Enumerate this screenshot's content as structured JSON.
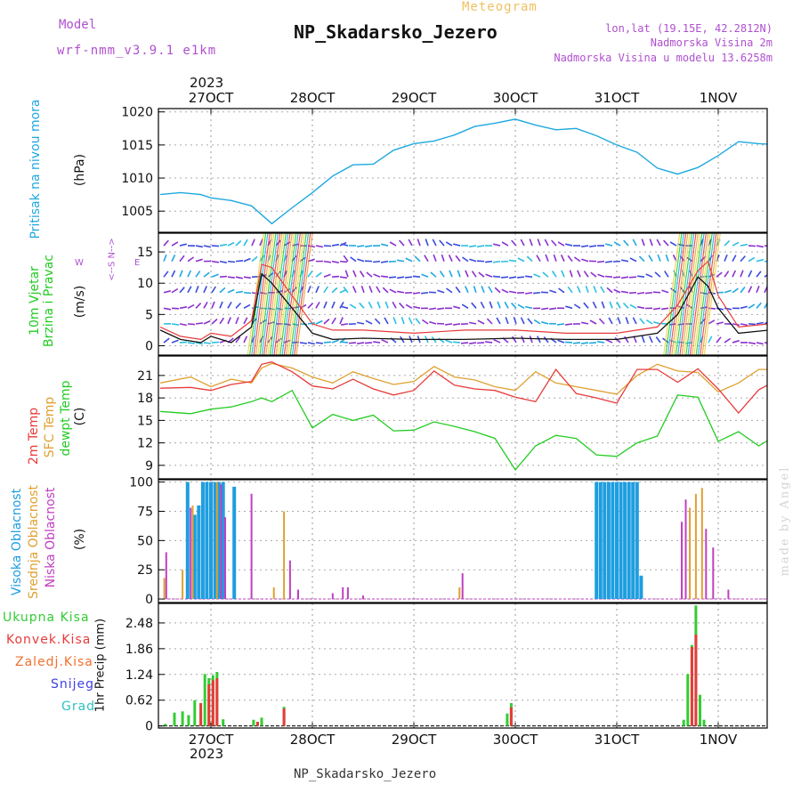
{
  "header": {
    "model_label": "Model",
    "model_value": "wrf-nmm_v3.9.1 e1km",
    "product": "Meteogram",
    "station": "NP_Skadarsko_Jezero",
    "lonlat": "lon,lat (19.15E, 42.2812N)",
    "elevation": "Nadmorska Visina 2m",
    "model_elevation": "Nadmorska Visina u modelu 13.6258m",
    "year_top": "2023",
    "year_bottom": "2023",
    "footer_station": "NP_Skadarsko_Jezero",
    "watermark": "made by Angel"
  },
  "colors": {
    "pressure": "#1ea8e0",
    "temp2m": "#e83a3a",
    "sfc": "#e0a030",
    "dew": "#22cc22",
    "high": "#1e9ee0",
    "mid": "#e0a030",
    "low": "#c040c0",
    "total": "#33cc33",
    "conv": "#e83a3a",
    "frozen": "#f07030",
    "snow": "#4040e0",
    "hail": "#30c0c0",
    "purple_text": "#b050d0"
  },
  "chart_data": [
    {
      "type": "line",
      "panel": "pressure",
      "ylabel_name": "Pritisak na nivou mora",
      "ylabel_unit": "(hPa)",
      "days": [
        "27OCT",
        "28OCT",
        "29OCT",
        "30OCT",
        "31OCT",
        "1NOV"
      ],
      "yticks": [
        1005,
        1010,
        1015,
        1020
      ],
      "ylim": [
        1001.8,
        1020.5
      ],
      "x": [
        -0.5,
        -0.3,
        -0.1,
        0.0,
        0.2,
        0.4,
        0.6,
        0.8,
        1.0,
        1.2,
        1.4,
        1.6,
        1.8,
        2.0,
        2.2,
        2.4,
        2.6,
        2.8,
        3.0,
        3.2,
        3.4,
        3.6,
        3.8,
        4.0,
        4.2,
        4.4,
        4.6,
        4.8,
        5.0,
        5.2,
        5.4,
        5.5
      ],
      "series": [
        {
          "values": [
            1007.5,
            1007.8,
            1007.5,
            1007.0,
            1006.6,
            1005.8,
            1003.1,
            1005.5,
            1007.8,
            1010.3,
            1012.0,
            1012.1,
            1014.2,
            1015.2,
            1015.6,
            1016.5,
            1017.8,
            1018.3,
            1018.9,
            1018.0,
            1017.3,
            1017.5,
            1016.4,
            1015.0,
            1013.9,
            1011.5,
            1010.6,
            1011.6,
            1013.4,
            1015.5,
            1015.2,
            1015.1
          ]
        }
      ]
    },
    {
      "type": "line",
      "panel": "wind",
      "ylabel_name": "10m Vjetar",
      "ylabel_name2": "Brzina i Pravac",
      "ylabel_unit": "(m/s)",
      "compass_s": "<--S",
      "compass_n": "N-->",
      "compass_w": "W",
      "compass_e": "E",
      "yticks": [
        0,
        5,
        10,
        15
      ],
      "ylim": [
        -1.5,
        18
      ],
      "x": [
        -0.5,
        -0.3,
        -0.1,
        0.0,
        0.2,
        0.4,
        0.5,
        0.6,
        0.8,
        1.0,
        1.2,
        1.5,
        2.0,
        2.5,
        3.0,
        3.5,
        4.0,
        4.4,
        4.6,
        4.8,
        4.9,
        5.0,
        5.2,
        5.5
      ],
      "series": [
        {
          "name": "speed",
          "values": [
            2.5,
            1.0,
            0.5,
            1.5,
            0.5,
            3.0,
            11.5,
            10.0,
            6.0,
            2.0,
            1.0,
            1.2,
            1.0,
            1.0,
            1.2,
            1.0,
            1.0,
            2.0,
            5.0,
            11.0,
            9.5,
            6.0,
            2.0,
            2.5
          ]
        },
        {
          "name": "gust",
          "values": [
            3.0,
            1.5,
            1.0,
            2.0,
            1.5,
            4.0,
            13.0,
            12.5,
            8.0,
            3.5,
            2.5,
            2.5,
            2.0,
            2.5,
            2.5,
            2.0,
            2.0,
            3.0,
            6.5,
            12.0,
            13.5,
            8.0,
            3.0,
            3.5
          ]
        }
      ]
    },
    {
      "type": "line",
      "panel": "temperature",
      "ylabel_t2": "2m Temp",
      "ylabel_sfc": "SFC Temp",
      "ylabel_dew": "dewpt Temp",
      "ylabel_unit": "(C)",
      "yticks": [
        9,
        12,
        15,
        18,
        21
      ],
      "ylim": [
        7.2,
        23.6
      ],
      "x": [
        -0.5,
        -0.2,
        0.0,
        0.2,
        0.4,
        0.5,
        0.6,
        0.8,
        1.0,
        1.2,
        1.4,
        1.6,
        1.8,
        2.0,
        2.2,
        2.4,
        2.6,
        2.8,
        3.0,
        3.2,
        3.4,
        3.6,
        3.8,
        4.0,
        4.2,
        4.4,
        4.6,
        4.8,
        5.0,
        5.2,
        5.4,
        5.5
      ],
      "series": [
        {
          "name": "2m Temp",
          "values": [
            19.3,
            19.4,
            19.0,
            19.8,
            20.2,
            22.5,
            22.8,
            21.5,
            19.6,
            19.2,
            20.5,
            19.2,
            18.4,
            19.0,
            21.6,
            19.7,
            19.2,
            19.0,
            18.1,
            17.5,
            21.8,
            18.6,
            18.0,
            17.3,
            21.8,
            21.8,
            20.1,
            21.9,
            19.2,
            16.0,
            19.1,
            19.8
          ]
        },
        {
          "name": "SFC Temp",
          "values": [
            20.0,
            20.8,
            19.5,
            20.5,
            20.0,
            22.0,
            22.6,
            22.0,
            20.8,
            20.0,
            21.5,
            20.6,
            19.8,
            20.2,
            22.2,
            20.8,
            20.4,
            19.5,
            19.0,
            21.5,
            20.0,
            19.5,
            19.0,
            18.5,
            21.0,
            22.5,
            21.6,
            21.4,
            18.8,
            20.0,
            21.8,
            21.8
          ]
        },
        {
          "name": "dewpt Temp",
          "values": [
            16.2,
            15.9,
            16.5,
            16.8,
            17.5,
            18.0,
            17.5,
            19.0,
            14.0,
            15.8,
            15.0,
            15.7,
            13.6,
            13.7,
            14.8,
            14.2,
            13.5,
            12.6,
            8.4,
            11.6,
            13.0,
            12.6,
            10.4,
            10.2,
            12.0,
            12.9,
            18.4,
            18.1,
            12.2,
            13.5,
            11.6,
            12.4
          ]
        }
      ]
    },
    {
      "type": "bar",
      "panel": "cloud",
      "ylabel_high": "Visoka Oblacnost",
      "ylabel_mid": "Srednja Oblacnost",
      "ylabel_low": "Niska Oblacnost",
      "ylabel_unit": "(%)",
      "yticks": [
        0,
        25,
        50,
        75,
        100
      ],
      "ylim": [
        -3,
        102
      ],
      "series": [
        {
          "name": "Visoka Oblacnost",
          "x": [
            -0.23,
            -0.16,
            -0.12,
            -0.08,
            -0.04,
            0.0,
            0.04,
            0.08,
            0.12,
            0.23,
            3.8,
            3.84,
            3.88,
            3.92,
            3.96,
            4.0,
            4.04,
            4.08,
            4.12,
            4.16,
            4.2,
            4.24
          ],
          "values": [
            100,
            72,
            80,
            100,
            100,
            100,
            100,
            100,
            100,
            96,
            100,
            100,
            100,
            100,
            100,
            100,
            100,
            100,
            100,
            100,
            100,
            20
          ]
        },
        {
          "name": "Srednja Oblacnost",
          "x": [
            -0.46,
            -0.28,
            -0.18,
            0.06,
            0.62,
            0.72,
            2.45,
            4.72,
            4.78,
            4.84
          ],
          "values": [
            18,
            25,
            80,
            100,
            10,
            75,
            10,
            78,
            90,
            95
          ]
        },
        {
          "name": "Niska Oblacnost",
          "x": [
            -0.44,
            -0.2,
            0.1,
            0.14,
            0.4,
            0.78,
            0.86,
            1.2,
            1.3,
            1.35,
            1.5,
            2.48,
            4.64,
            4.68,
            4.88,
            4.95,
            5.1
          ],
          "values": [
            40,
            78,
            98,
            70,
            90,
            33,
            8,
            5,
            10,
            10,
            3,
            22,
            66,
            85,
            60,
            44,
            8
          ]
        }
      ]
    },
    {
      "type": "bar",
      "panel": "precip",
      "ylabel_total": "Ukupna Kisa",
      "ylabel_conv": "Konvek.Kisa",
      "ylabel_frozen": "Zaledj.Kisa",
      "ylabel_snow": "Snijeg",
      "ylabel_hail": "Grad",
      "ylabel_unit": "1hr Precip (mm)",
      "ytick_labels": [
        "0",
        "0.62",
        "1.24",
        "1.86",
        "2.48"
      ],
      "yticks": [
        0,
        0.62,
        1.24,
        1.86,
        2.48
      ],
      "ylim": [
        -0.05,
        2.95
      ],
      "series": [
        {
          "name": "Ukupna Kisa",
          "x": [
            -0.45,
            -0.36,
            -0.28,
            -0.22,
            -0.16,
            -0.1,
            -0.06,
            -0.02,
            0.02,
            0.06,
            0.12,
            0.42,
            0.46,
            0.5,
            0.72,
            2.92,
            2.96,
            4.66,
            4.7,
            4.74,
            4.78,
            4.82,
            4.86
          ],
          "values": [
            0.05,
            0.32,
            0.35,
            0.26,
            0.62,
            0.36,
            1.25,
            1.15,
            1.22,
            1.3,
            0.16,
            0.15,
            0.1,
            0.2,
            0.46,
            0.3,
            0.55,
            0.15,
            1.25,
            1.95,
            2.9,
            0.75,
            0.15
          ]
        },
        {
          "name": "Konvek.Kisa",
          "x": [
            -0.1,
            -0.02,
            0.02,
            0.06,
            0.46,
            0.72,
            2.96,
            4.74,
            4.78
          ],
          "values": [
            0.55,
            1.0,
            1.1,
            1.15,
            0.1,
            0.42,
            0.45,
            1.9,
            2.2
          ]
        }
      ]
    }
  ]
}
